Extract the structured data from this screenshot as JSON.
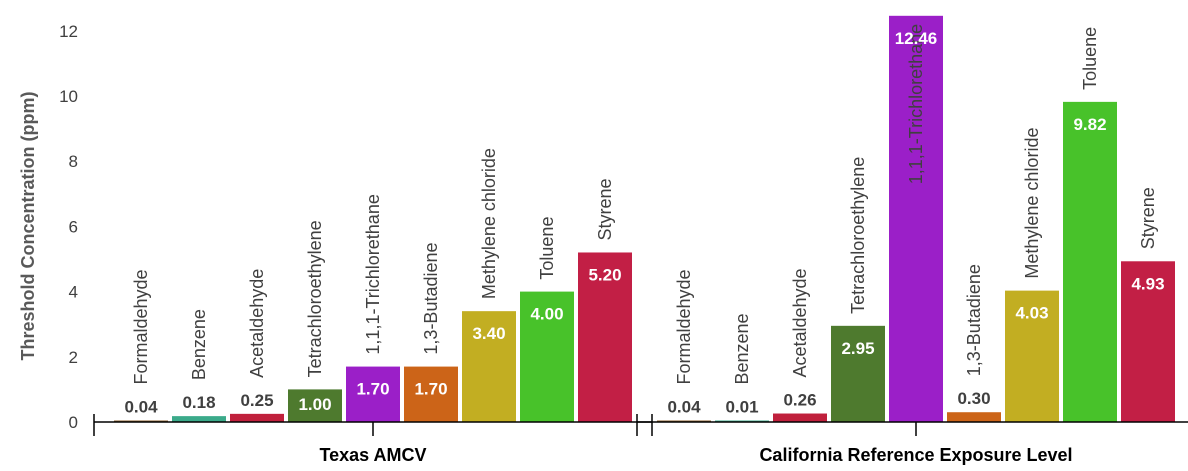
{
  "chart_data": {
    "type": "bar",
    "ylabel": "Threshold Concentration (ppm)",
    "ylim": [
      0,
      12
    ],
    "yticks": [
      0,
      2,
      4,
      6,
      8,
      10,
      12
    ],
    "grid": false,
    "legend": "none",
    "categories": [
      "Formaldehyde",
      "Benzene",
      "Acetaldehyde",
      "Tetrachloroethylene",
      "1,1,1-Trichlorethane",
      "1,3-Butadiene",
      "Methylene chloride",
      "Toluene",
      "Styrene"
    ],
    "colors": [
      "#8B5E2B",
      "#3BAA8A",
      "#C0203C",
      "#4E7A2E",
      "#9B1FC8",
      "#CC6418",
      "#C2AE22",
      "#48C22A",
      "#C21F45"
    ],
    "groups": [
      {
        "name": "Texas AMCV",
        "values": [
          0.04,
          0.18,
          0.25,
          1.0,
          1.7,
          1.7,
          3.4,
          4.0,
          5.2
        ],
        "value_labels": [
          "0.04",
          "0.18",
          "0.25",
          "1.00",
          "1.70",
          "1.70",
          "3.40",
          "4.00",
          "5.20"
        ]
      },
      {
        "name": "California Reference Exposure Level",
        "values": [
          0.04,
          0.01,
          0.26,
          2.95,
          12.46,
          0.3,
          4.03,
          9.82,
          4.93
        ],
        "value_labels": [
          "0.04",
          "0.01",
          "0.26",
          "2.95",
          "12.46",
          "0.30",
          "4.03",
          "9.82",
          "4.93"
        ]
      }
    ]
  }
}
